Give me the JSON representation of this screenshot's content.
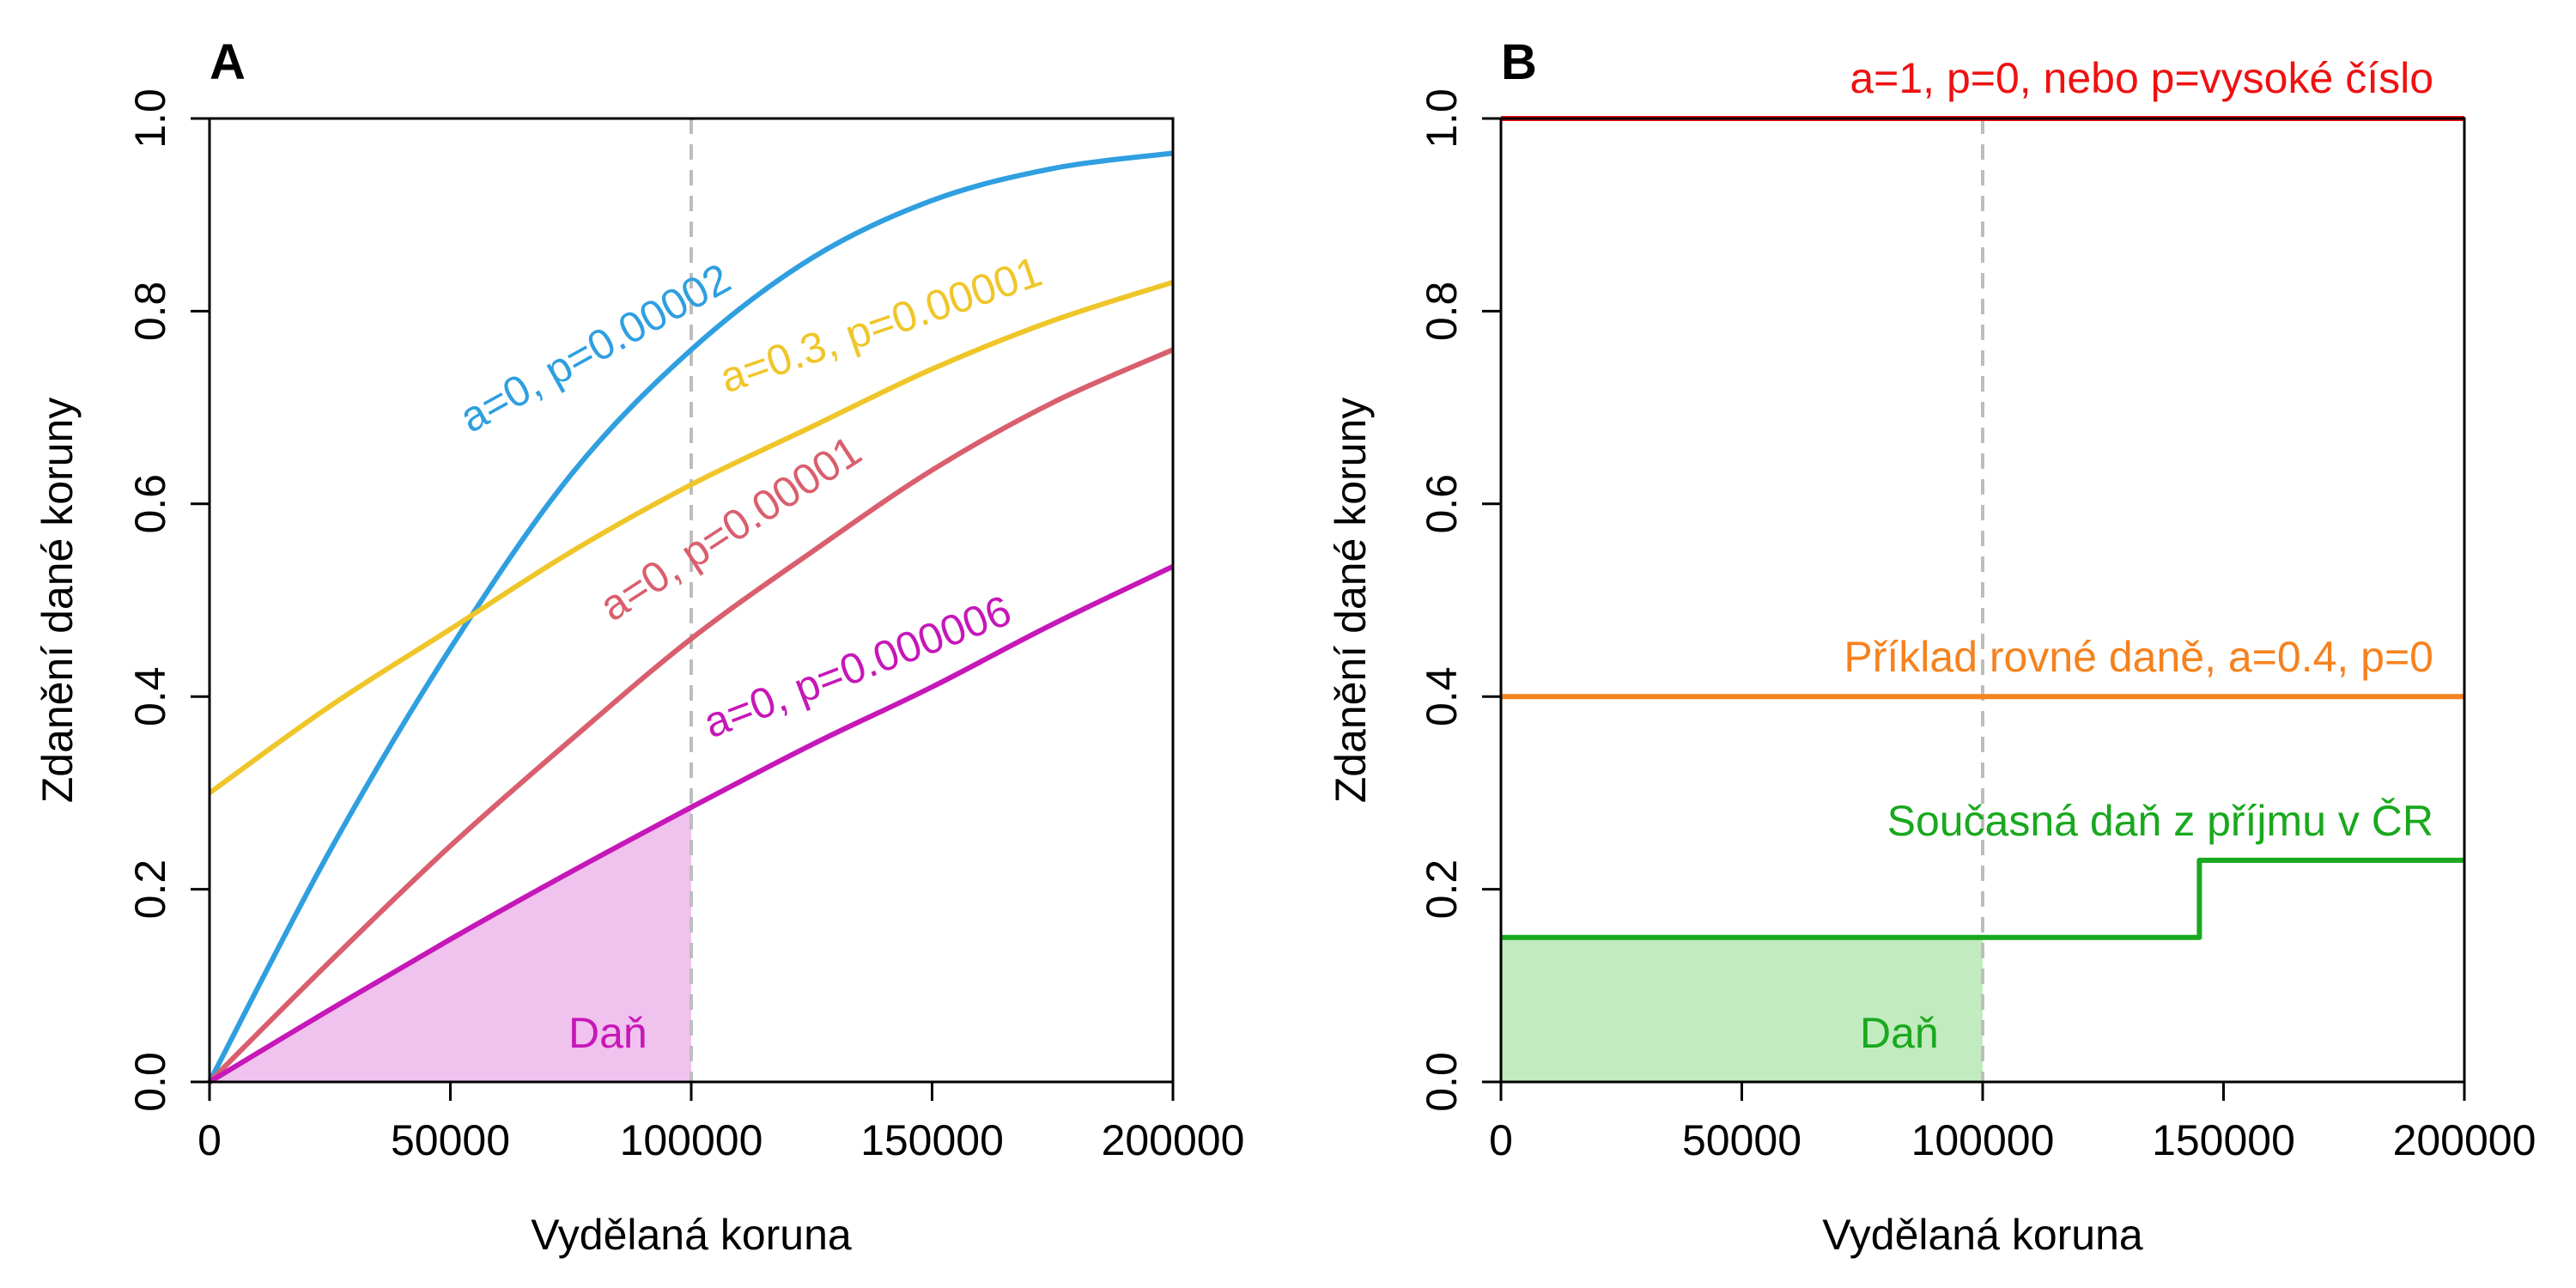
{
  "chart_data": [
    {
      "panel": "A",
      "type": "line",
      "xlabel": "Vydělaná koruna",
      "ylabel": "Zdanění dané koruny",
      "xlim": [
        0,
        200000
      ],
      "ylim": [
        0,
        1
      ],
      "xticks": [
        "0",
        "50000",
        "100000",
        "150000",
        "200000"
      ],
      "yticks": [
        "0.0",
        "0.2",
        "0.4",
        "0.6",
        "0.8",
        "1.0"
      ],
      "reference_line_x": 100000,
      "series": [
        {
          "name": "a=0, p=0.00002",
          "color": "#2f9fe0",
          "x": [
            0,
            25000,
            50000,
            75000,
            100000,
            125000,
            150000,
            175000,
            200000
          ],
          "y": [
            0,
            0.24,
            0.45,
            0.63,
            0.76,
            0.855,
            0.915,
            0.948,
            0.964
          ]
        },
        {
          "name": "a=0.3, p=0.00001",
          "color": "#efc62a",
          "x": [
            0,
            25000,
            50000,
            75000,
            100000,
            125000,
            150000,
            175000,
            200000
          ],
          "y": [
            0.3,
            0.39,
            0.47,
            0.55,
            0.62,
            0.68,
            0.74,
            0.79,
            0.83
          ]
        },
        {
          "name": "a=0, p=0.00001",
          "color": "#d95f6e",
          "x": [
            0,
            25000,
            50000,
            75000,
            100000,
            125000,
            150000,
            175000,
            200000
          ],
          "y": [
            0,
            0.125,
            0.245,
            0.355,
            0.46,
            0.55,
            0.635,
            0.705,
            0.76
          ]
        },
        {
          "name": "a=0, p=0.000006",
          "color": "#c617b8",
          "x": [
            0,
            25000,
            50000,
            75000,
            100000,
            125000,
            150000,
            175000,
            200000
          ],
          "y": [
            0,
            0.075,
            0.148,
            0.218,
            0.285,
            0.35,
            0.41,
            0.475,
            0.535
          ]
        }
      ],
      "shaded_area": {
        "label": "Daň",
        "color": "#f0c2ee",
        "series_index": 3,
        "x_max": 100000
      }
    },
    {
      "panel": "B",
      "type": "line",
      "xlabel": "Vydělaná koruna",
      "ylabel": "Zdanění dané koruny",
      "xlim": [
        0,
        200000
      ],
      "ylim": [
        0,
        1
      ],
      "xticks": [
        "0",
        "50000",
        "100000",
        "150000",
        "200000"
      ],
      "yticks": [
        "0.0",
        "0.2",
        "0.4",
        "0.6",
        "0.8",
        "1.0"
      ],
      "reference_line_x": 100000,
      "series": [
        {
          "name": "a=1, p=0, nebo p=vysoké číslo",
          "color": "#ee1111",
          "x": [
            0,
            200000
          ],
          "y": [
            1.0,
            1.0
          ]
        },
        {
          "name": "Příklad rovné daně, a=0.4, p=0",
          "color": "#f5821f",
          "x": [
            0,
            200000
          ],
          "y": [
            0.4,
            0.4
          ]
        },
        {
          "name": "Současná daň z příjmu v ČR",
          "color": "#19a81e",
          "x": [
            0,
            145000,
            145000,
            200000
          ],
          "y": [
            0.15,
            0.15,
            0.23,
            0.23
          ]
        }
      ],
      "shaded_area": {
        "label": "Daň",
        "color": "#c2ebc0",
        "series_index": 2,
        "x_max": 100000
      }
    }
  ]
}
